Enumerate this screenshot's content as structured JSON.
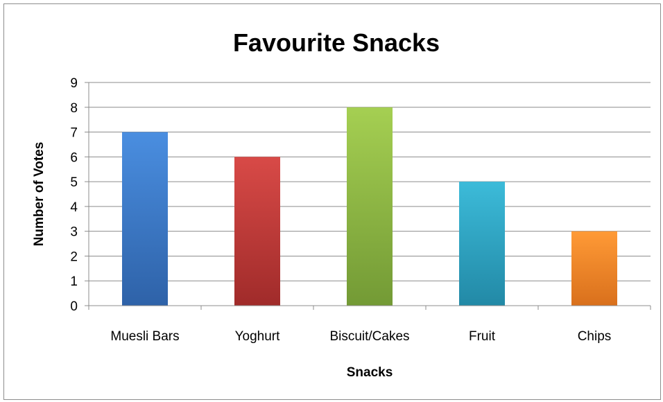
{
  "chart_data": {
    "type": "bar",
    "title": "Favourite Snacks",
    "xlabel": "Snacks",
    "ylabel": "Number of Votes",
    "categories": [
      "Muesli Bars",
      "Yoghurt",
      "Biscuit/Cakes",
      "Fruit",
      "Chips"
    ],
    "values": [
      7,
      6,
      8,
      5,
      3
    ],
    "ylim": [
      0,
      9
    ],
    "yticks": [
      "0",
      "1",
      "2",
      "3",
      "4",
      "5",
      "6",
      "7",
      "8",
      "9"
    ],
    "grid": true,
    "legend": "none",
    "colors": [
      {
        "light": "#4a8ee0",
        "dark": "#2e62a8"
      },
      {
        "light": "#d84a47",
        "dark": "#a02b2a"
      },
      {
        "light": "#a5cf52",
        "dark": "#739a35"
      },
      {
        "light": "#3cbbd9",
        "dark": "#2289a6"
      },
      {
        "light": "#ff9a36",
        "dark": "#d9701c"
      }
    ]
  }
}
